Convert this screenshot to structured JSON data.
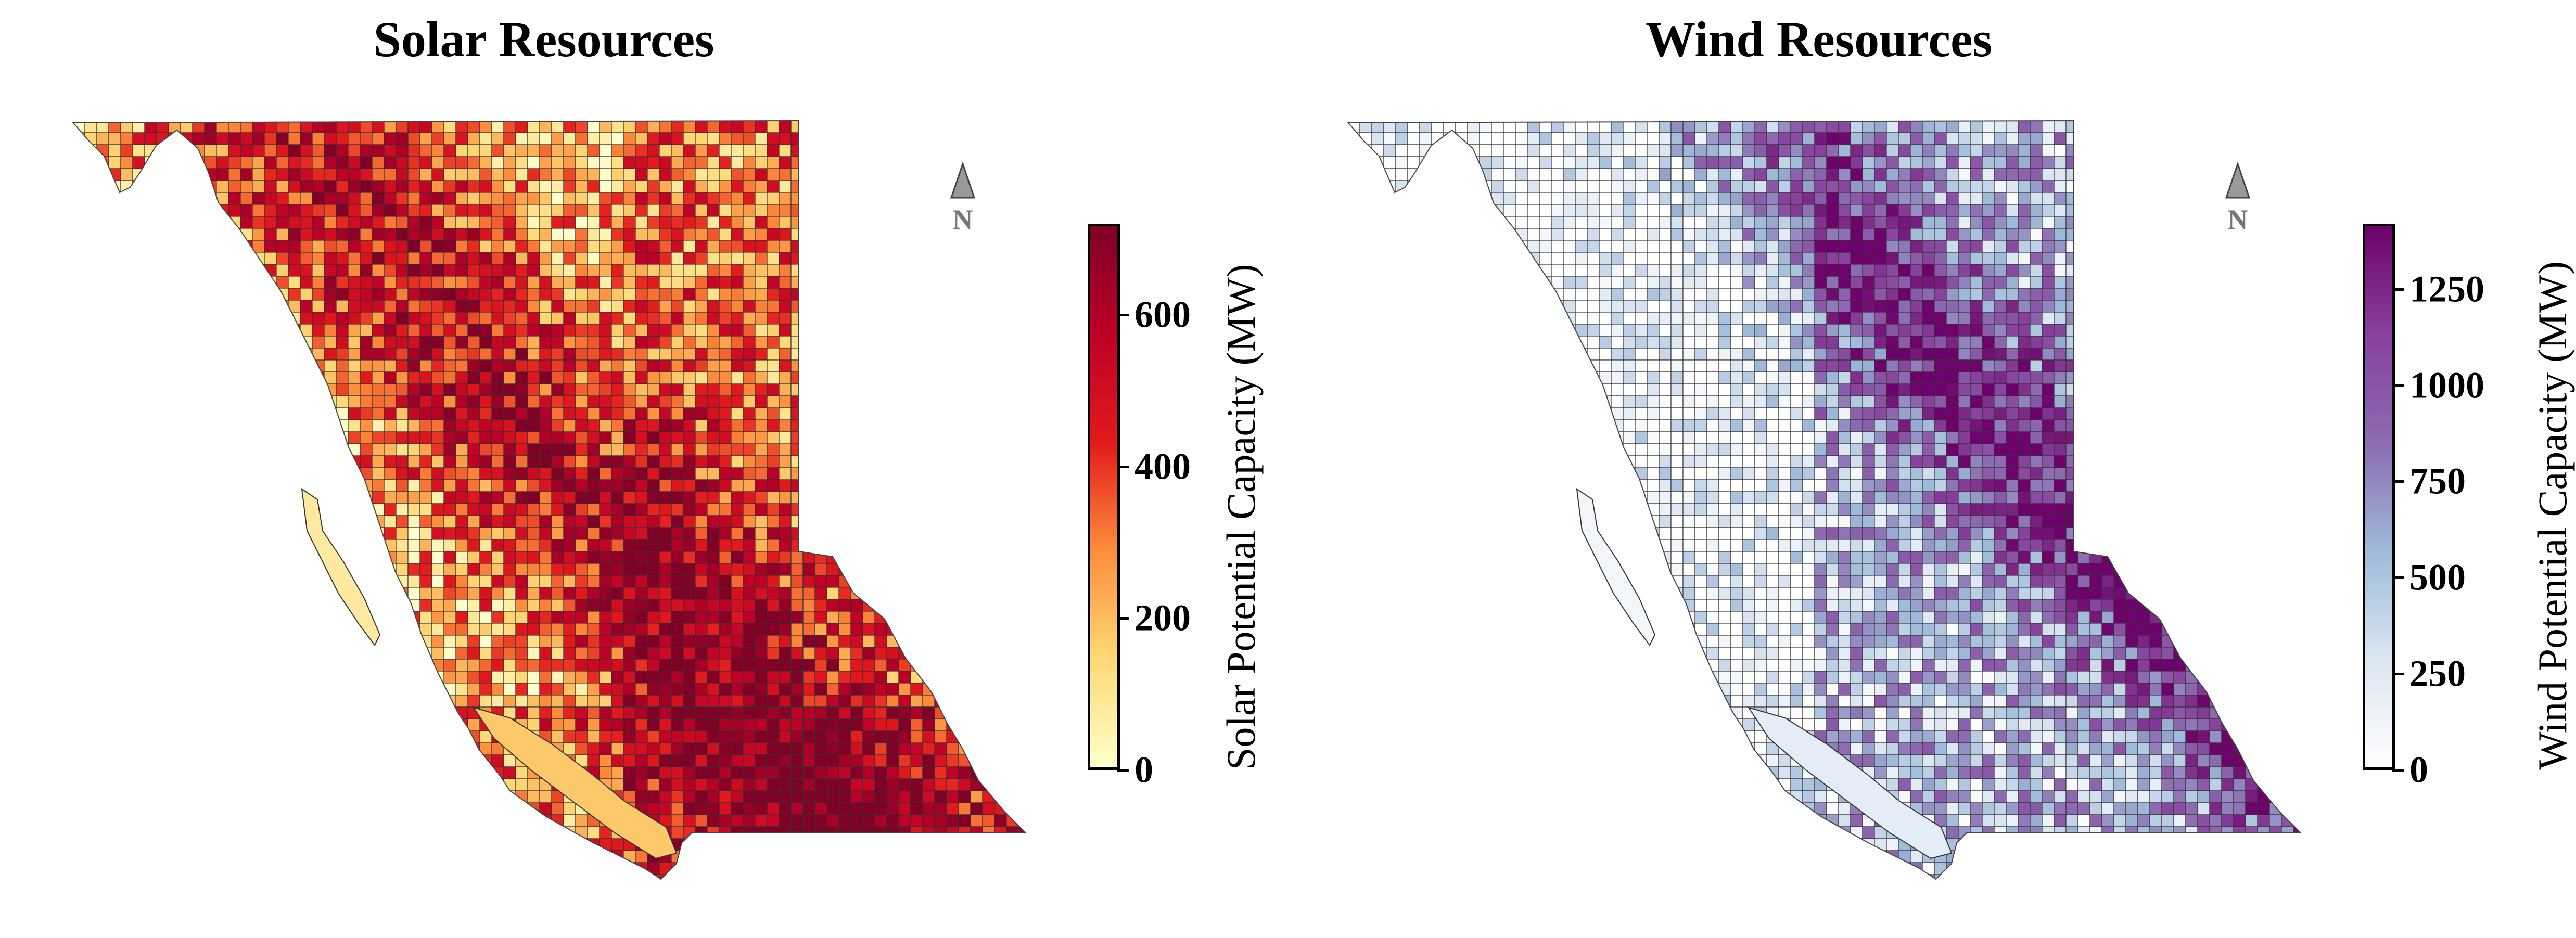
{
  "panels": [
    {
      "id": "solar",
      "title": "Solar Resources",
      "colorbar_label": "Solar Potential Capacity (MW)",
      "colorbar_ticks": [
        "0",
        "200",
        "400",
        "600"
      ],
      "colorbar_range": [
        0,
        720
      ],
      "colorscale": [
        "#ffffcc",
        "#fed976",
        "#fd8d3c",
        "#e31a1c",
        "#bd0026",
        "#800026"
      ],
      "north_label": "N"
    },
    {
      "id": "wind",
      "title": "Wind Resources",
      "colorbar_label": "Wind Potential Capacity (MW)",
      "colorbar_ticks": [
        "0",
        "250",
        "500",
        "750",
        "1000",
        "1250"
      ],
      "colorbar_range": [
        0,
        1420
      ],
      "colorscale": [
        "#ffffff",
        "#dbe6f2",
        "#9ebad9",
        "#8c6bb1",
        "#88419d",
        "#6e016b"
      ],
      "north_label": "N"
    }
  ]
}
